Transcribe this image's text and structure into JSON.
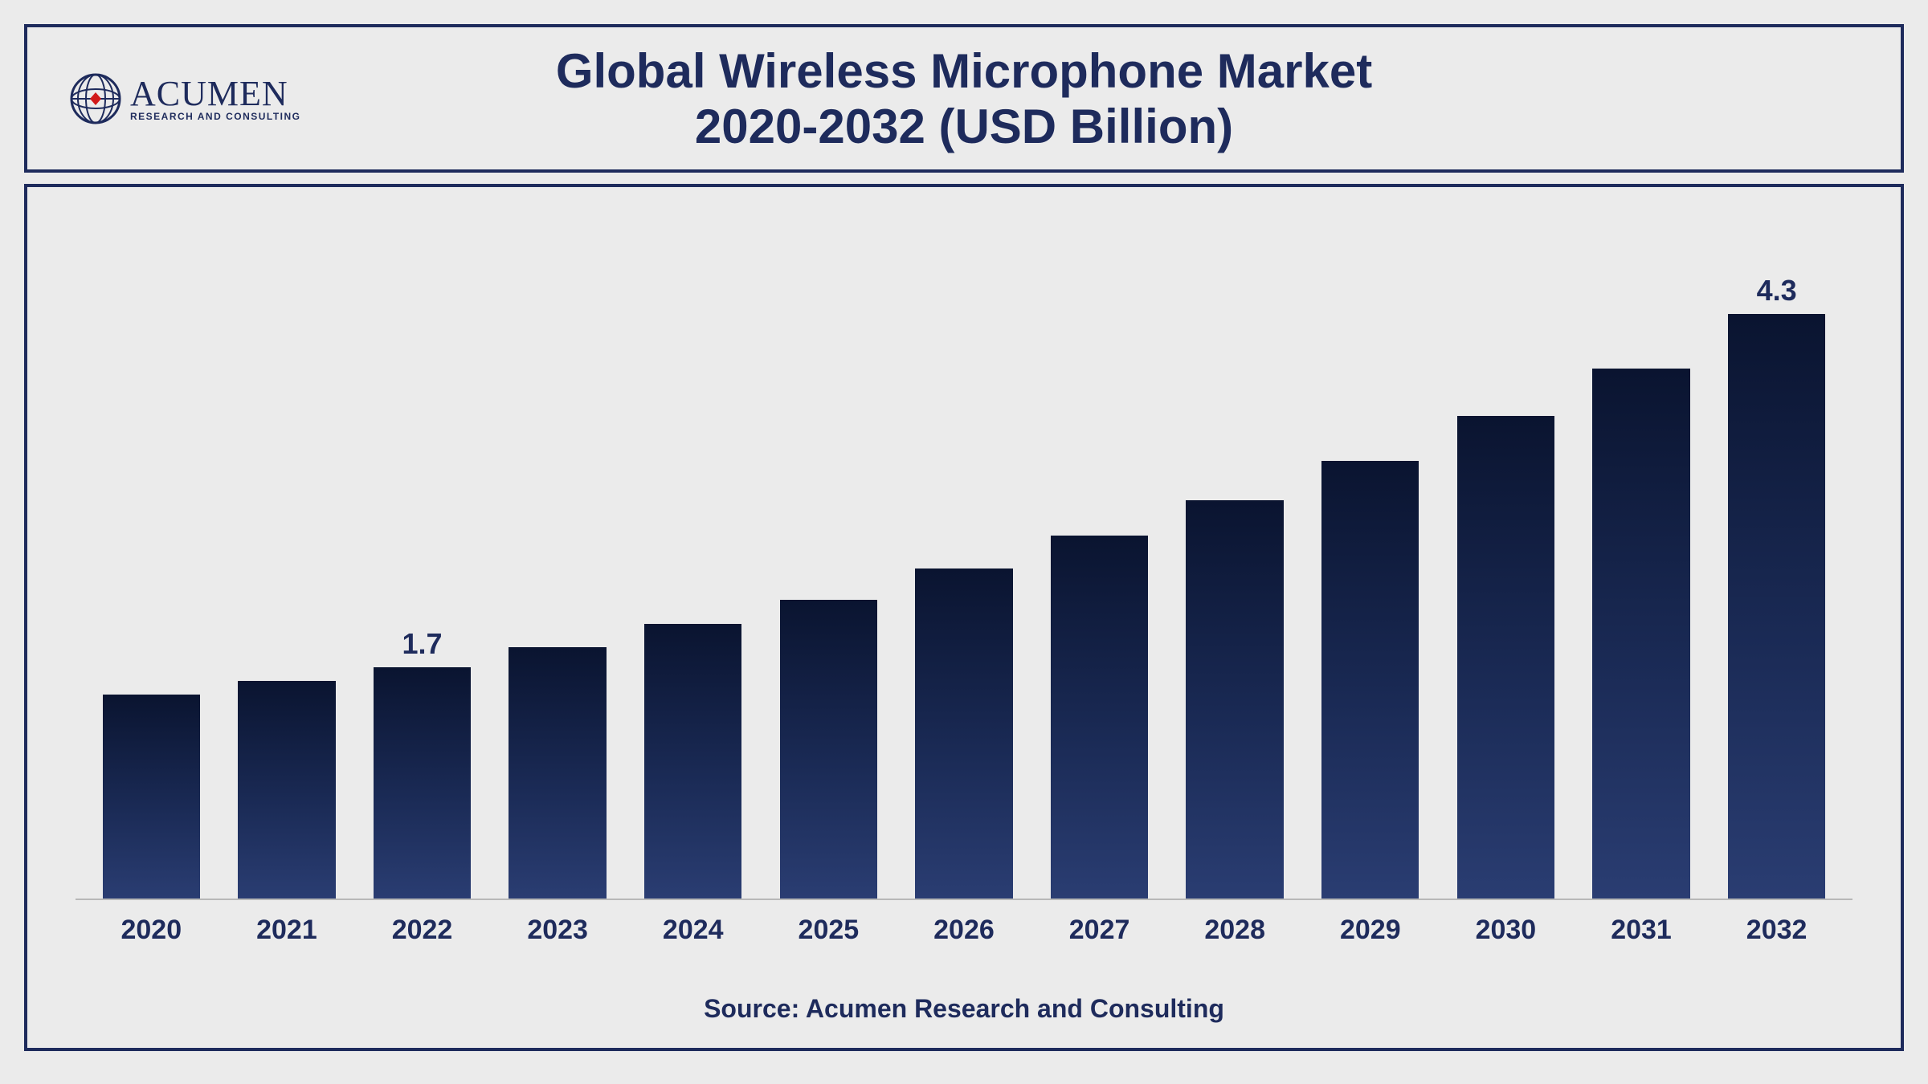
{
  "brand": {
    "name": "ACUMEN",
    "tagline": "RESEARCH AND CONSULTING",
    "globe_stroke": "#1e2b5c",
    "globe_accent": "#d11919"
  },
  "title": {
    "line1": "Global Wireless Microphone Market",
    "line2": "2020-2032 (USD Billion)",
    "color": "#1e2b5c",
    "fontsize": 60
  },
  "chart": {
    "type": "bar",
    "categories": [
      "2020",
      "2021",
      "2022",
      "2023",
      "2024",
      "2025",
      "2026",
      "2027",
      "2028",
      "2029",
      "2030",
      "2031",
      "2032"
    ],
    "values": [
      1.5,
      1.6,
      1.7,
      1.85,
      2.02,
      2.2,
      2.43,
      2.67,
      2.93,
      3.22,
      3.55,
      3.9,
      4.3
    ],
    "value_labels": [
      "",
      "",
      "1.7",
      "",
      "",
      "",
      "",
      "",
      "",
      "",
      "",
      "",
      "4.3"
    ],
    "ylim": [
      0,
      5.0
    ],
    "bar_gradient_top": "#0a1430",
    "bar_gradient_mid": "#1a2a55",
    "bar_gradient_bottom": "#2a3d72",
    "bar_width_ratio": 0.72,
    "background_color": "#ebebeb",
    "border_color": "#1e2b5c",
    "axis_line_color": "#b8b8b8",
    "x_tick_fontsize": 34,
    "x_tick_color": "#1e2b5c",
    "value_label_fontsize": 36,
    "value_label_color": "#1e2b5c"
  },
  "source": {
    "text": "Source: Acumen Research and Consulting",
    "fontsize": 32,
    "color": "#1e2b5c"
  }
}
